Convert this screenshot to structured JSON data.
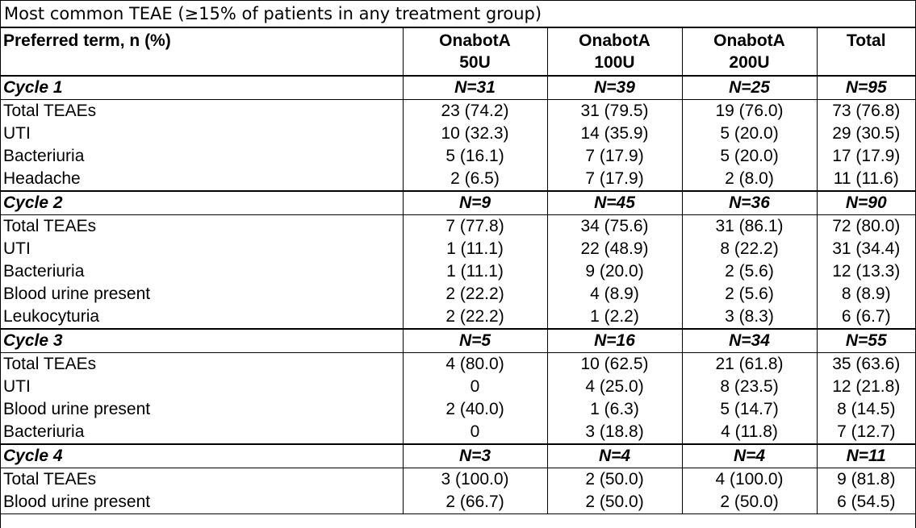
{
  "caption": "Most common TEAE (≥15% of patients in any treatment group)",
  "header": {
    "term": "Preferred term, n (%)",
    "groups": [
      [
        "OnabotA",
        "50U"
      ],
      [
        "OnabotA",
        "100U"
      ],
      [
        "OnabotA",
        "200U"
      ],
      [
        "Total",
        ""
      ]
    ]
  },
  "cycles": [
    {
      "label": "Cycle 1",
      "n": [
        "N=31",
        "N=39",
        "N=25",
        "N=95"
      ],
      "rows": [
        {
          "term": "Total TEAEs",
          "vals": [
            "23 (74.2)",
            "31 (79.5)",
            "19 (76.0)",
            "73 (76.8)"
          ]
        },
        {
          "term": "UTI",
          "vals": [
            "10 (32.3)",
            "14 (35.9)",
            "5 (20.0)",
            "29 (30.5)"
          ]
        },
        {
          "term": "Bacteriuria",
          "vals": [
            "5 (16.1)",
            "7 (17.9)",
            "5 (20.0)",
            "17 (17.9)"
          ]
        },
        {
          "term": "Headache",
          "vals": [
            "2 (6.5)",
            "7 (17.9)",
            "2 (8.0)",
            "11 (11.6)"
          ]
        }
      ]
    },
    {
      "label": "Cycle 2",
      "n": [
        "N=9",
        "N=45",
        "N=36",
        "N=90"
      ],
      "rows": [
        {
          "term": "Total TEAEs",
          "vals": [
            "7 (77.8)",
            "34 (75.6)",
            "31 (86.1)",
            "72 (80.0)"
          ]
        },
        {
          "term": "UTI",
          "vals": [
            "1 (11.1)",
            "22 (48.9)",
            "8 (22.2)",
            "31 (34.4)"
          ]
        },
        {
          "term": "Bacteriuria",
          "vals": [
            "1 (11.1)",
            "9 (20.0)",
            "2 (5.6)",
            "12 (13.3)"
          ]
        },
        {
          "term": "Blood urine present",
          "vals": [
            "2 (22.2)",
            "4 (8.9)",
            "2 (5.6)",
            "8 (8.9)"
          ]
        },
        {
          "term": "Leukocyturia",
          "vals": [
            "2 (22.2)",
            "1 (2.2)",
            "3 (8.3)",
            "6 (6.7)"
          ]
        }
      ]
    },
    {
      "label": "Cycle 3",
      "n": [
        "N=5",
        "N=16",
        "N=34",
        "N=55"
      ],
      "rows": [
        {
          "term": "Total TEAEs",
          "vals": [
            "4 (80.0)",
            "10 (62.5)",
            "21 (61.8)",
            "35 (63.6)"
          ]
        },
        {
          "term": "UTI",
          "vals": [
            "0",
            "4 (25.0)",
            "8 (23.5)",
            "12 (21.8)"
          ]
        },
        {
          "term": "Blood urine present",
          "vals": [
            "2 (40.0)",
            "1 (6.3)",
            "5 (14.7)",
            "8 (14.5)"
          ]
        },
        {
          "term": "Bacteriuria",
          "vals": [
            "0",
            "3 (18.8)",
            "4 (11.8)",
            "7 (12.7)"
          ]
        }
      ]
    },
    {
      "label": "Cycle 4",
      "n": [
        "N=3",
        "N=4",
        "N=4",
        "N=11"
      ],
      "rows": [
        {
          "term": "Total TEAEs",
          "vals": [
            "3 (100.0)",
            "2 (50.0)",
            "4 (100.0)",
            "9 (81.8)"
          ]
        },
        {
          "term": "Blood urine present",
          "vals": [
            "2 (66.7)",
            "2 (50.0)",
            "2 (50.0)",
            "6 (54.5)"
          ]
        }
      ]
    }
  ]
}
